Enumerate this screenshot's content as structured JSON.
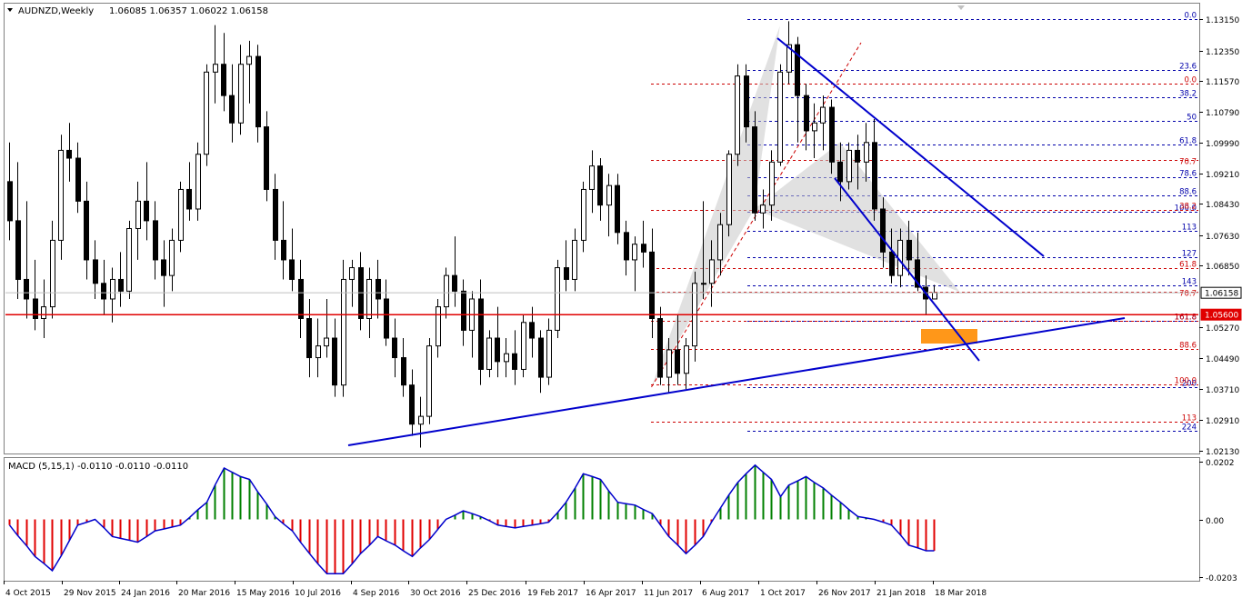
{
  "header": {
    "symbol": "AUDNZD,Weekly",
    "ohlc": "1.06085 1.06357 1.06022 1.06158"
  },
  "macd_header": "MACD (5,15,1) -0.0110 -0.0110 -0.0110",
  "colors": {
    "bull_candle": "#ffffff",
    "bear_candle": "#000000",
    "trendline": "#0000cc",
    "support_line": "#e00000",
    "fib_blue": "#0000aa",
    "fib_red": "#cc0000",
    "pattern_fill": "#c8c8c8",
    "prz_box": "#ff8c00",
    "macd_positive": "#008000",
    "macd_negative": "#e00000",
    "macd_signal": "#0000cc"
  },
  "chart_data": [
    {
      "type": "candlestick",
      "symbol": "AUDNZD",
      "timeframe": "Weekly",
      "x_tick_labels": [
        "4 Oct 2015",
        "29 Nov 2015",
        "24 Jan 2016",
        "20 Mar 2016",
        "15 May 2016",
        "10 Jul 2016",
        "4 Sep 2016",
        "30 Oct 2016",
        "25 Dec 2016",
        "19 Feb 2017",
        "16 Apr 2017",
        "11 Jun 2017",
        "6 Aug 2017",
        "1 Oct 2017",
        "26 Nov 2017",
        "21 Jan 2018",
        "18 Mar 2018"
      ],
      "y_ticks": [
        1.1315,
        1.1235,
        1.1157,
        1.1079,
        1.0999,
        1.0921,
        1.0843,
        1.0763,
        1.0685,
        1.0527,
        1.0449,
        1.0371,
        1.0291,
        1.0213
      ],
      "y_tick_labels": [
        "1.13150",
        "1.12350",
        "1.11570",
        "1.10790",
        "1.09990",
        "1.09210",
        "1.08430",
        "1.07630",
        "1.06850",
        "1.05270",
        "1.04490",
        "1.03710",
        "1.02910",
        "1.02130"
      ],
      "ylim": [
        1.0205,
        1.1355
      ],
      "current_price": "1.06158",
      "support_level": "1.05600",
      "candles": [
        {
          "o": 1.09,
          "h": 1.1,
          "l": 1.075,
          "c": 1.08
        },
        {
          "o": 1.08,
          "h": 1.095,
          "l": 1.06,
          "c": 1.065
        },
        {
          "o": 1.065,
          "h": 1.085,
          "l": 1.055,
          "c": 1.06
        },
        {
          "o": 1.06,
          "h": 1.07,
          "l": 1.052,
          "c": 1.055
        },
        {
          "o": 1.055,
          "h": 1.065,
          "l": 1.05,
          "c": 1.058
        },
        {
          "o": 1.058,
          "h": 1.08,
          "l": 1.055,
          "c": 1.075
        },
        {
          "o": 1.075,
          "h": 1.102,
          "l": 1.07,
          "c": 1.098
        },
        {
          "o": 1.098,
          "h": 1.105,
          "l": 1.09,
          "c": 1.096
        },
        {
          "o": 1.096,
          "h": 1.1,
          "l": 1.082,
          "c": 1.085
        },
        {
          "o": 1.085,
          "h": 1.09,
          "l": 1.065,
          "c": 1.07
        },
        {
          "o": 1.07,
          "h": 1.075,
          "l": 1.06,
          "c": 1.064
        },
        {
          "o": 1.064,
          "h": 1.07,
          "l": 1.056,
          "c": 1.06
        },
        {
          "o": 1.06,
          "h": 1.068,
          "l": 1.054,
          "c": 1.065
        },
        {
          "o": 1.065,
          "h": 1.072,
          "l": 1.058,
          "c": 1.062
        },
        {
          "o": 1.062,
          "h": 1.08,
          "l": 1.06,
          "c": 1.078
        },
        {
          "o": 1.078,
          "h": 1.09,
          "l": 1.07,
          "c": 1.085
        },
        {
          "o": 1.085,
          "h": 1.095,
          "l": 1.075,
          "c": 1.08
        },
        {
          "o": 1.08,
          "h": 1.085,
          "l": 1.065,
          "c": 1.07
        },
        {
          "o": 1.07,
          "h": 1.075,
          "l": 1.058,
          "c": 1.066
        },
        {
          "o": 1.066,
          "h": 1.078,
          "l": 1.062,
          "c": 1.075
        },
        {
          "o": 1.075,
          "h": 1.09,
          "l": 1.072,
          "c": 1.088
        },
        {
          "o": 1.088,
          "h": 1.095,
          "l": 1.08,
          "c": 1.083
        },
        {
          "o": 1.083,
          "h": 1.1,
          "l": 1.08,
          "c": 1.097
        },
        {
          "o": 1.097,
          "h": 1.12,
          "l": 1.094,
          "c": 1.118
        },
        {
          "o": 1.118,
          "h": 1.13,
          "l": 1.11,
          "c": 1.12
        },
        {
          "o": 1.12,
          "h": 1.128,
          "l": 1.108,
          "c": 1.112
        },
        {
          "o": 1.112,
          "h": 1.12,
          "l": 1.1,
          "c": 1.105
        },
        {
          "o": 1.105,
          "h": 1.125,
          "l": 1.102,
          "c": 1.12
        },
        {
          "o": 1.12,
          "h": 1.126,
          "l": 1.11,
          "c": 1.122
        },
        {
          "o": 1.122,
          "h": 1.125,
          "l": 1.1,
          "c": 1.104
        },
        {
          "o": 1.104,
          "h": 1.108,
          "l": 1.085,
          "c": 1.088
        },
        {
          "o": 1.088,
          "h": 1.092,
          "l": 1.07,
          "c": 1.075
        },
        {
          "o": 1.075,
          "h": 1.085,
          "l": 1.065,
          "c": 1.07
        },
        {
          "o": 1.07,
          "h": 1.078,
          "l": 1.062,
          "c": 1.065
        },
        {
          "o": 1.065,
          "h": 1.07,
          "l": 1.05,
          "c": 1.055
        },
        {
          "o": 1.055,
          "h": 1.06,
          "l": 1.04,
          "c": 1.045
        },
        {
          "o": 1.045,
          "h": 1.055,
          "l": 1.04,
          "c": 1.048
        },
        {
          "o": 1.048,
          "h": 1.06,
          "l": 1.045,
          "c": 1.05
        },
        {
          "o": 1.05,
          "h": 1.055,
          "l": 1.035,
          "c": 1.038
        },
        {
          "o": 1.038,
          "h": 1.07,
          "l": 1.035,
          "c": 1.065
        },
        {
          "o": 1.065,
          "h": 1.07,
          "l": 1.058,
          "c": 1.068
        },
        {
          "o": 1.068,
          "h": 1.072,
          "l": 1.052,
          "c": 1.055
        },
        {
          "o": 1.055,
          "h": 1.068,
          "l": 1.05,
          "c": 1.065
        },
        {
          "o": 1.065,
          "h": 1.07,
          "l": 1.055,
          "c": 1.06
        },
        {
          "o": 1.06,
          "h": 1.065,
          "l": 1.048,
          "c": 1.05
        },
        {
          "o": 1.05,
          "h": 1.055,
          "l": 1.04,
          "c": 1.045
        },
        {
          "o": 1.045,
          "h": 1.05,
          "l": 1.035,
          "c": 1.038
        },
        {
          "o": 1.038,
          "h": 1.042,
          "l": 1.025,
          "c": 1.028
        },
        {
          "o": 1.028,
          "h": 1.035,
          "l": 1.022,
          "c": 1.03
        },
        {
          "o": 1.03,
          "h": 1.05,
          "l": 1.028,
          "c": 1.048
        },
        {
          "o": 1.048,
          "h": 1.06,
          "l": 1.045,
          "c": 1.058
        },
        {
          "o": 1.058,
          "h": 1.068,
          "l": 1.055,
          "c": 1.066
        },
        {
          "o": 1.066,
          "h": 1.076,
          "l": 1.058,
          "c": 1.062
        },
        {
          "o": 1.062,
          "h": 1.065,
          "l": 1.048,
          "c": 1.052
        },
        {
          "o": 1.052,
          "h": 1.062,
          "l": 1.045,
          "c": 1.06
        },
        {
          "o": 1.06,
          "h": 1.065,
          "l": 1.038,
          "c": 1.042
        },
        {
          "o": 1.042,
          "h": 1.052,
          "l": 1.04,
          "c": 1.05
        },
        {
          "o": 1.05,
          "h": 1.058,
          "l": 1.04,
          "c": 1.044
        },
        {
          "o": 1.044,
          "h": 1.05,
          "l": 1.04,
          "c": 1.046
        },
        {
          "o": 1.046,
          "h": 1.052,
          "l": 1.038,
          "c": 1.042
        },
        {
          "o": 1.042,
          "h": 1.056,
          "l": 1.04,
          "c": 1.054
        },
        {
          "o": 1.054,
          "h": 1.058,
          "l": 1.045,
          "c": 1.05
        },
        {
          "o": 1.05,
          "h": 1.052,
          "l": 1.036,
          "c": 1.04
        },
        {
          "o": 1.04,
          "h": 1.055,
          "l": 1.038,
          "c": 1.052
        },
        {
          "o": 1.052,
          "h": 1.07,
          "l": 1.05,
          "c": 1.068
        },
        {
          "o": 1.068,
          "h": 1.075,
          "l": 1.062,
          "c": 1.065
        },
        {
          "o": 1.065,
          "h": 1.078,
          "l": 1.062,
          "c": 1.075
        },
        {
          "o": 1.075,
          "h": 1.09,
          "l": 1.072,
          "c": 1.088
        },
        {
          "o": 1.088,
          "h": 1.098,
          "l": 1.082,
          "c": 1.094
        },
        {
          "o": 1.094,
          "h": 1.096,
          "l": 1.08,
          "c": 1.084
        },
        {
          "o": 1.084,
          "h": 1.092,
          "l": 1.076,
          "c": 1.089
        },
        {
          "o": 1.089,
          "h": 1.092,
          "l": 1.074,
          "c": 1.077
        },
        {
          "o": 1.077,
          "h": 1.08,
          "l": 1.066,
          "c": 1.07
        },
        {
          "o": 1.07,
          "h": 1.076,
          "l": 1.062,
          "c": 1.074
        },
        {
          "o": 1.074,
          "h": 1.08,
          "l": 1.068,
          "c": 1.072
        },
        {
          "o": 1.072,
          "h": 1.078,
          "l": 1.05,
          "c": 1.055
        },
        {
          "o": 1.055,
          "h": 1.058,
          "l": 1.038,
          "c": 1.04
        },
        {
          "o": 1.04,
          "h": 1.05,
          "l": 1.036,
          "c": 1.047
        },
        {
          "o": 1.047,
          "h": 1.056,
          "l": 1.038,
          "c": 1.041
        },
        {
          "o": 1.041,
          "h": 1.05,
          "l": 1.037,
          "c": 1.048
        },
        {
          "o": 1.048,
          "h": 1.067,
          "l": 1.044,
          "c": 1.064
        },
        {
          "o": 1.064,
          "h": 1.085,
          "l": 1.06,
          "c": 1.064
        },
        {
          "o": 1.064,
          "h": 1.075,
          "l": 1.058,
          "c": 1.07
        },
        {
          "o": 1.07,
          "h": 1.082,
          "l": 1.066,
          "c": 1.079
        },
        {
          "o": 1.079,
          "h": 1.098,
          "l": 1.076,
          "c": 1.097
        },
        {
          "o": 1.097,
          "h": 1.12,
          "l": 1.094,
          "c": 1.117
        },
        {
          "o": 1.117,
          "h": 1.12,
          "l": 1.1,
          "c": 1.104
        },
        {
          "o": 1.104,
          "h": 1.108,
          "l": 1.08,
          "c": 1.082
        },
        {
          "o": 1.082,
          "h": 1.088,
          "l": 1.078,
          "c": 1.084
        },
        {
          "o": 1.084,
          "h": 1.098,
          "l": 1.08,
          "c": 1.095
        },
        {
          "o": 1.095,
          "h": 1.12,
          "l": 1.094,
          "c": 1.118
        },
        {
          "o": 1.118,
          "h": 1.131,
          "l": 1.115,
          "c": 1.125
        },
        {
          "o": 1.125,
          "h": 1.127,
          "l": 1.1,
          "c": 1.112
        },
        {
          "o": 1.112,
          "h": 1.115,
          "l": 1.098,
          "c": 1.103
        },
        {
          "o": 1.103,
          "h": 1.11,
          "l": 1.096,
          "c": 1.105
        },
        {
          "o": 1.105,
          "h": 1.112,
          "l": 1.098,
          "c": 1.109
        },
        {
          "o": 1.109,
          "h": 1.111,
          "l": 1.092,
          "c": 1.095
        },
        {
          "o": 1.095,
          "h": 1.1,
          "l": 1.085,
          "c": 1.09
        },
        {
          "o": 1.09,
          "h": 1.1,
          "l": 1.088,
          "c": 1.098
        },
        {
          "o": 1.098,
          "h": 1.102,
          "l": 1.088,
          "c": 1.095
        },
        {
          "o": 1.095,
          "h": 1.105,
          "l": 1.09,
          "c": 1.1
        },
        {
          "o": 1.1,
          "h": 1.106,
          "l": 1.08,
          "c": 1.083
        },
        {
          "o": 1.083,
          "h": 1.086,
          "l": 1.068,
          "c": 1.072
        },
        {
          "o": 1.072,
          "h": 1.078,
          "l": 1.064,
          "c": 1.066
        },
        {
          "o": 1.066,
          "h": 1.078,
          "l": 1.063,
          "c": 1.075
        },
        {
          "o": 1.075,
          "h": 1.08,
          "l": 1.066,
          "c": 1.07
        },
        {
          "o": 1.07,
          "h": 1.077,
          "l": 1.062,
          "c": 1.063
        },
        {
          "o": 1.063,
          "h": 1.066,
          "l": 1.056,
          "c": 1.06
        },
        {
          "o": 1.06,
          "h": 1.0636,
          "l": 1.0602,
          "c": 1.0616
        }
      ],
      "fib_levels_blue": [
        {
          "label": "0.0",
          "value": 1.1315
        },
        {
          "label": "23.6",
          "value": 1.1185
        },
        {
          "label": "38.2",
          "value": 1.1115
        },
        {
          "label": "50",
          "value": 1.1055
        },
        {
          "label": "61.8",
          "value": 1.0995
        },
        {
          "label": "78.6",
          "value": 1.0912
        },
        {
          "label": "88.6",
          "value": 1.0865
        },
        {
          "label": "100.0",
          "value": 1.0822
        },
        {
          "label": "113",
          "value": 1.0775
        },
        {
          "label": "127",
          "value": 1.0706
        },
        {
          "label": "143",
          "value": 1.0635
        },
        {
          "label": "161.8",
          "value": 1.0545
        },
        {
          "label": "200",
          "value": 1.0375
        },
        {
          "label": "224",
          "value": 1.0262
        }
      ],
      "fib_levels_red": [
        {
          "label": "0.0",
          "value": 1.115
        },
        {
          "label": "70.7",
          "value": 1.0955
        },
        {
          "label": "38.2",
          "value": 1.0828
        },
        {
          "label": "61.8",
          "value": 1.068
        },
        {
          "label": "70.7",
          "value": 1.0618
        },
        {
          "label": "161.8",
          "value": 1.0545
        },
        {
          "label": "88.6",
          "value": 1.0472
        },
        {
          "label": "100.0",
          "value": 1.0382
        },
        {
          "label": "113",
          "value": 1.0287
        }
      ]
    },
    {
      "type": "bar",
      "name": "MACD",
      "params": "5,15,1",
      "y_tick_labels": [
        "0.0202",
        "0.00",
        "-0.0203"
      ],
      "ylim": [
        -0.0215,
        0.0215
      ],
      "keyframes": [
        [
          0,
          -0.002
        ],
        [
          3,
          -0.013
        ],
        [
          5,
          -0.018
        ],
        [
          8,
          -0.002
        ],
        [
          10,
          0
        ],
        [
          12,
          -0.006
        ],
        [
          15,
          -0.008
        ],
        [
          17,
          -0.004
        ],
        [
          20,
          -0.002
        ],
        [
          23,
          0.006
        ],
        [
          25,
          0.018
        ],
        [
          27,
          0.015
        ],
        [
          28,
          0.014
        ],
        [
          31,
          0.001
        ],
        [
          33,
          -0.004
        ],
        [
          35,
          -0.012
        ],
        [
          37,
          -0.019
        ],
        [
          39,
          -0.019
        ],
        [
          41,
          -0.012
        ],
        [
          43,
          -0.006
        ],
        [
          45,
          -0.009
        ],
        [
          47,
          -0.013
        ],
        [
          49,
          -0.007
        ],
        [
          51,
          0
        ],
        [
          53,
          0.003
        ],
        [
          55,
          0.001
        ],
        [
          57,
          -0.002
        ],
        [
          59,
          -0.003
        ],
        [
          61,
          -0.002
        ],
        [
          63,
          -0.001
        ],
        [
          65,
          0.006
        ],
        [
          67,
          0.016
        ],
        [
          69,
          0.014
        ],
        [
          71,
          0.006
        ],
        [
          73,
          0.005
        ],
        [
          75,
          0.002
        ],
        [
          77,
          -0.006
        ],
        [
          79,
          -0.012
        ],
        [
          81,
          -0.006
        ],
        [
          83,
          0.004
        ],
        [
          85,
          0.013
        ],
        [
          87,
          0.019
        ],
        [
          89,
          0.014
        ],
        [
          90,
          0.008
        ],
        [
          91,
          0.012
        ],
        [
          93,
          0.015
        ],
        [
          95,
          0.011
        ],
        [
          97,
          0.006
        ],
        [
          99,
          0.001
        ],
        [
          101,
          0
        ],
        [
          103,
          -0.002
        ],
        [
          105,
          -0.009
        ],
        [
          107,
          -0.011
        ],
        [
          109,
          -0.011
        ],
        [
          111,
          -0.011
        ]
      ]
    }
  ]
}
